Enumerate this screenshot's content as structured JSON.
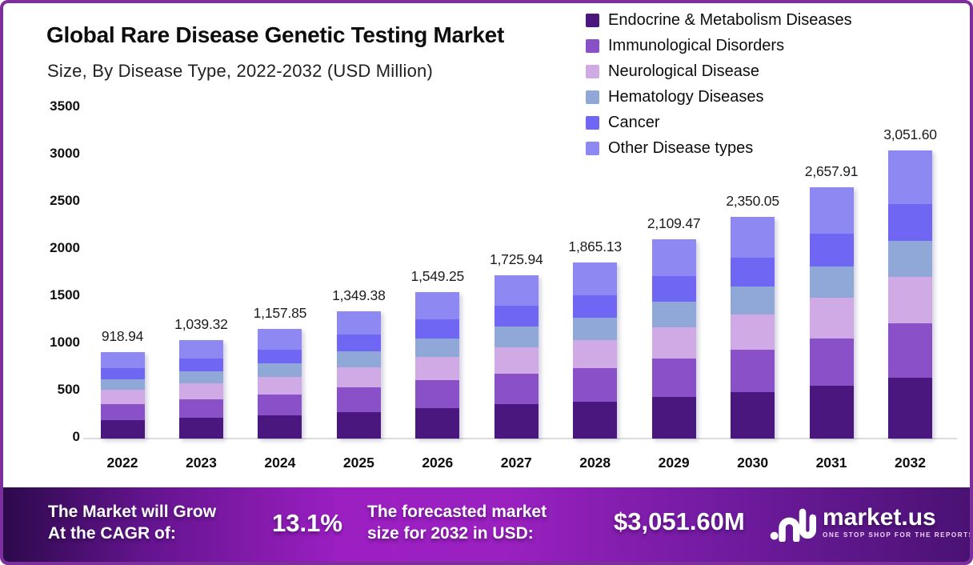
{
  "header": {
    "title": "Global Rare Disease Genetic Testing Market",
    "subtitle": "Size, By Disease Type, 2022-2032 (USD Million)"
  },
  "chart_data": {
    "type": "bar",
    "stacked": true,
    "grid": false,
    "legend_position": "top-right",
    "ylabel": "USD Million",
    "ylim": [
      0,
      3500
    ],
    "yticks": [
      0,
      500,
      1000,
      1500,
      2000,
      2500,
      3000,
      3500
    ],
    "categories": [
      "2022",
      "2023",
      "2024",
      "2025",
      "2026",
      "2027",
      "2028",
      "2029",
      "2030",
      "2031",
      "2032"
    ],
    "series": [
      {
        "name": "Endocrine & Metabolism Diseases",
        "color": "#4a177e",
        "values": [
          192.98,
          218.26,
          243.15,
          283.37,
          325.34,
          362.45,
          391.68,
          442.99,
          493.51,
          558.16,
          640.84
        ]
      },
      {
        "name": "Immunological Disorders",
        "color": "#8a50c7",
        "values": [
          174.6,
          197.47,
          219.99,
          256.38,
          294.36,
          327.93,
          354.37,
          400.8,
          446.51,
          505.0,
          579.8
        ]
      },
      {
        "name": "Neurological Disease",
        "color": "#cfaae5",
        "values": [
          147.03,
          166.29,
          185.26,
          215.9,
          247.88,
          276.15,
          298.42,
          337.52,
          376.01,
          425.27,
          488.26
        ]
      },
      {
        "name": "Hematology Diseases",
        "color": "#8fa8d8",
        "values": [
          114.87,
          129.92,
          144.73,
          168.67,
          193.66,
          215.74,
          233.14,
          263.68,
          293.76,
          332.24,
          381.45
        ]
      },
      {
        "name": "Cancer",
        "color": "#6f66f3",
        "values": [
          119.46,
          135.11,
          150.52,
          175.42,
          201.4,
          224.37,
          242.47,
          274.23,
          305.51,
          345.53,
          396.71
        ]
      },
      {
        "name": "Other Disease types",
        "color": "#8e88f2",
        "values": [
          170.0,
          192.27,
          214.2,
          249.64,
          286.61,
          319.3,
          345.05,
          390.25,
          434.75,
          491.71,
          564.54
        ]
      }
    ],
    "totals": [
      918.94,
      1039.32,
      1157.85,
      1349.38,
      1549.25,
      1725.94,
      1865.13,
      2109.47,
      2350.05,
      2657.91,
      3051.6
    ],
    "total_labels": [
      "918.94",
      "1,039.32",
      "1,157.85",
      "1,349.38",
      "1,549.25",
      "1,725.94",
      "1,865.13",
      "2,109.47",
      "2,350.05",
      "2,657.91",
      "3,051.60"
    ]
  },
  "footer": {
    "cagr_label_line1": "The Market will Grow",
    "cagr_label_line2": "At the CAGR of:",
    "cagr_value": "13.1%",
    "forecast_label_line1": "The forecasted market",
    "forecast_label_line2": "size for 2032 in USD:",
    "forecast_value": "$3,051.60M",
    "brand": {
      "name": "market.us",
      "tagline": "ONE STOP SHOP FOR THE REPORTS"
    }
  },
  "colors": {
    "frame_border": "#7c2e9c",
    "axis_line": "#dcdcdc",
    "banner_left": "#2d0a4c",
    "banner_center": "#9c1fc2",
    "banner_right": "#4a1273"
  }
}
